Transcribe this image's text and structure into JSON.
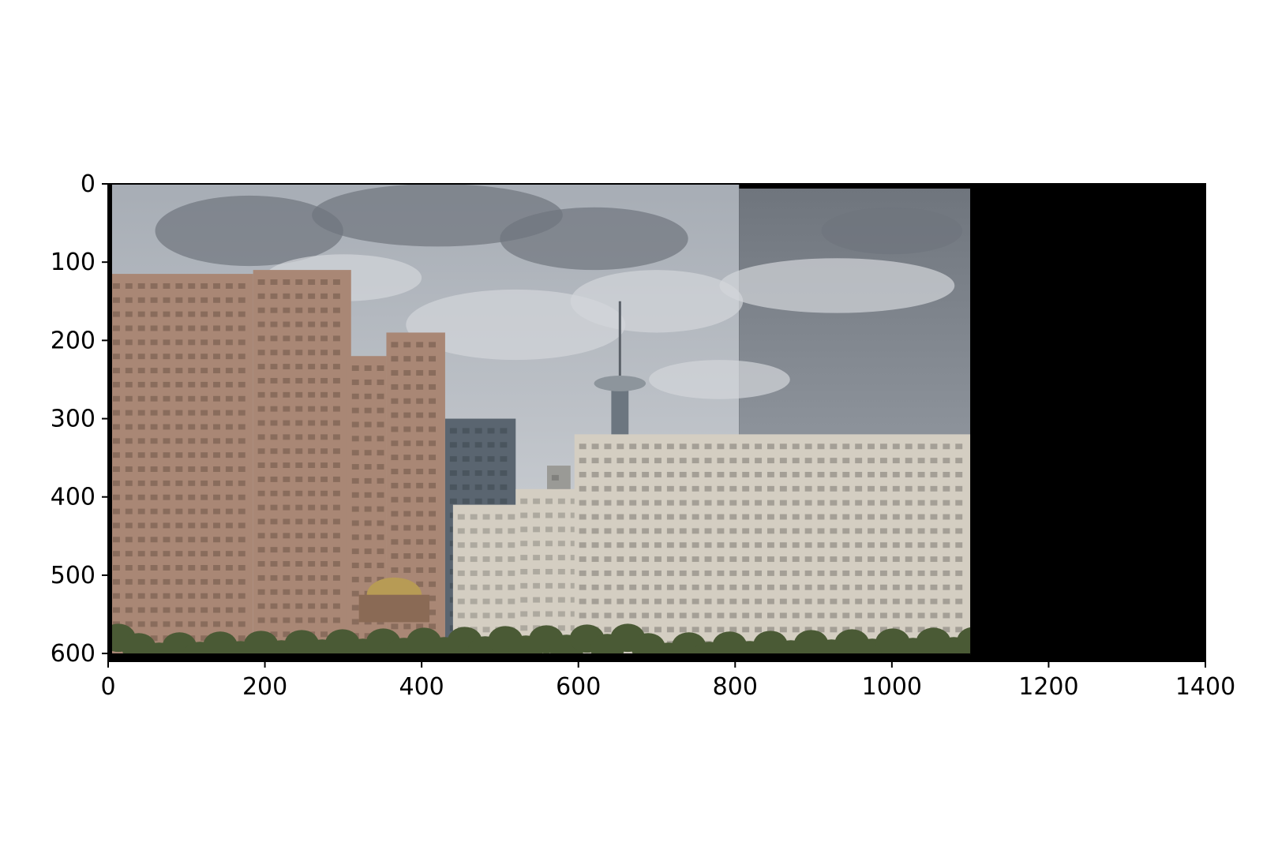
{
  "chart_data": {
    "type": "image",
    "title": "",
    "xlabel": "",
    "ylabel": "",
    "xlim": [
      0,
      1400
    ],
    "ylim": [
      610,
      0
    ],
    "x_ticks": [
      0,
      200,
      400,
      600,
      800,
      1000,
      1200,
      1400
    ],
    "x_tick_labels": [
      "0",
      "200",
      "400",
      "600",
      "800",
      "1000",
      "1200",
      "1400"
    ],
    "y_ticks": [
      0,
      100,
      200,
      300,
      400,
      500,
      600
    ],
    "y_tick_labels": [
      "0",
      "100",
      "200",
      "300",
      "400",
      "500",
      "600"
    ],
    "grid": false,
    "image_content": {
      "photo_extent_x": [
        0,
        1100
      ],
      "photo_extent_y": [
        0,
        600
      ],
      "seam_x": 805,
      "black_fill_extent_x": [
        1100,
        1400
      ],
      "colors": {
        "sky": "#a7adb5",
        "cloud_light": "#d3d6da",
        "cloud_dark": "#6f757d",
        "brick_building": "#a98775",
        "brick_dark": "#6f5648",
        "cream_building": "#d4cec2",
        "glass_tower": "#5a6570",
        "trees": "#4a5a35",
        "dome_gold": "#b79b55",
        "fill_black": "#000000"
      }
    }
  }
}
